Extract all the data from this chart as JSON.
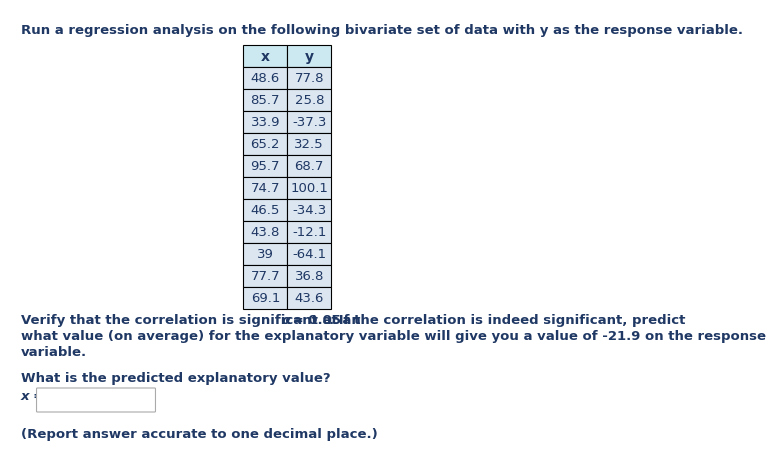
{
  "title_text": "Run a regression analysis on the following bivariate set of data with y as the response variable.",
  "x_data": [
    48.6,
    85.7,
    33.9,
    65.2,
    95.7,
    74.7,
    46.5,
    43.8,
    39,
    77.7,
    69.1
  ],
  "y_data": [
    77.8,
    25.8,
    -37.3,
    32.5,
    68.7,
    100.1,
    -34.3,
    -12.1,
    -64.1,
    36.8,
    43.6
  ],
  "col_headers": [
    "x",
    "y"
  ],
  "verify_line1a": "Verify that the correlation is significant at an ",
  "verify_alpha": "α",
  "verify_line1b": " = 0.05",
  "verify_line1c": ". If the correlation is indeed significant, predict",
  "verify_line2": "what value (on average) for the explanatory variable will give you a value of -21.9 on the response",
  "verify_line3": "variable.",
  "question_text": "What is the predicted explanatory value?",
  "x_label": "x =",
  "report_text": "(Report answer accurate to one decimal place.)",
  "bg_color": "#ffffff",
  "text_color": "#1f3864",
  "header_bg": "#cce8f0",
  "cell_bg": "#dce6f1",
  "table_border_color": "#000000",
  "bold_color": "#000000",
  "font_size": 9.5,
  "header_font_size": 10
}
